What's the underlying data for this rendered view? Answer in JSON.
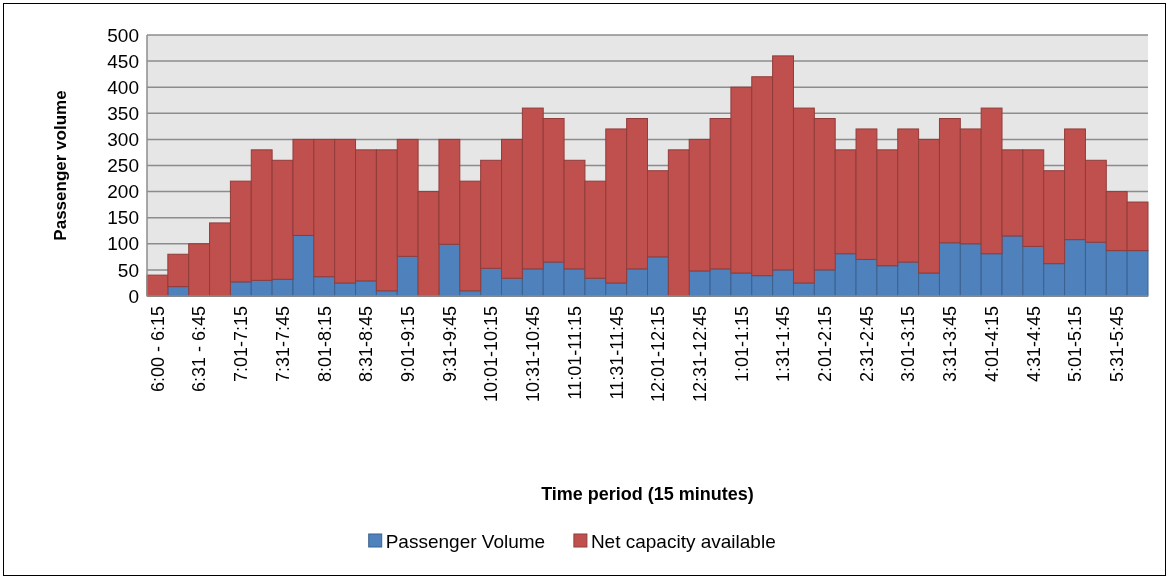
{
  "chart_data": {
    "type": "bar",
    "stacked": true,
    "xlabel": "Time period (15 minutes)",
    "ylabel": "Passenger volume",
    "categories": [
      "6:00 - 6:15",
      null,
      "6:31 - 6:45",
      null,
      "7:01-7:15",
      null,
      "7:31-7:45",
      null,
      "8:01-8:15",
      null,
      "8:31-8:45",
      null,
      "9:01-9:15",
      null,
      "9:31-9:45",
      null,
      "10:01-10:15",
      null,
      "10:31-10:45",
      null,
      "11:01-11:15",
      null,
      "11:31-11:45",
      null,
      "12:01-12:15",
      null,
      "12:31-12:45",
      null,
      "1:01-1:15",
      null,
      "1:31-1:45",
      null,
      "2:01-2:15",
      null,
      "2:31-2:45",
      null,
      "3:01-3:15",
      null,
      "3:31-3:45",
      null,
      "4:01-4:15",
      null,
      "4:31-4:45",
      null,
      "5:01-5:15",
      null,
      "5:31-5:45",
      null
    ],
    "series": [
      {
        "name": "Passenger Volume",
        "color": "#4f81bd",
        "values": [
          0,
          18,
          0,
          0,
          27,
          30,
          32,
          116,
          37,
          25,
          29,
          10,
          76,
          0,
          99,
          10,
          53,
          34,
          52,
          65,
          52,
          34,
          25,
          52,
          75,
          0,
          48,
          52,
          44,
          39,
          50,
          25,
          50,
          81,
          70,
          58,
          65,
          44,
          102,
          100,
          81,
          115,
          95,
          62,
          108,
          103,
          87,
          87
        ]
      },
      {
        "name": "Net capacity available",
        "color": "#c0504d",
        "values": [
          40,
          62,
          100,
          140,
          193,
          250,
          228,
          184,
          263,
          275,
          251,
          270,
          224,
          200,
          201,
          210,
          207,
          266,
          308,
          275,
          208,
          186,
          295,
          288,
          165,
          280,
          252,
          288,
          356,
          381,
          410,
          335,
          290,
          199,
          250,
          222,
          255,
          256,
          238,
          220,
          279,
          165,
          185,
          178,
          212,
          157,
          113,
          93
        ]
      }
    ],
    "ylim": [
      0,
      500
    ],
    "yticks": [
      0,
      50,
      100,
      150,
      200,
      250,
      300,
      350,
      400,
      450,
      500
    ],
    "grid": "y",
    "legend": "bottom"
  }
}
